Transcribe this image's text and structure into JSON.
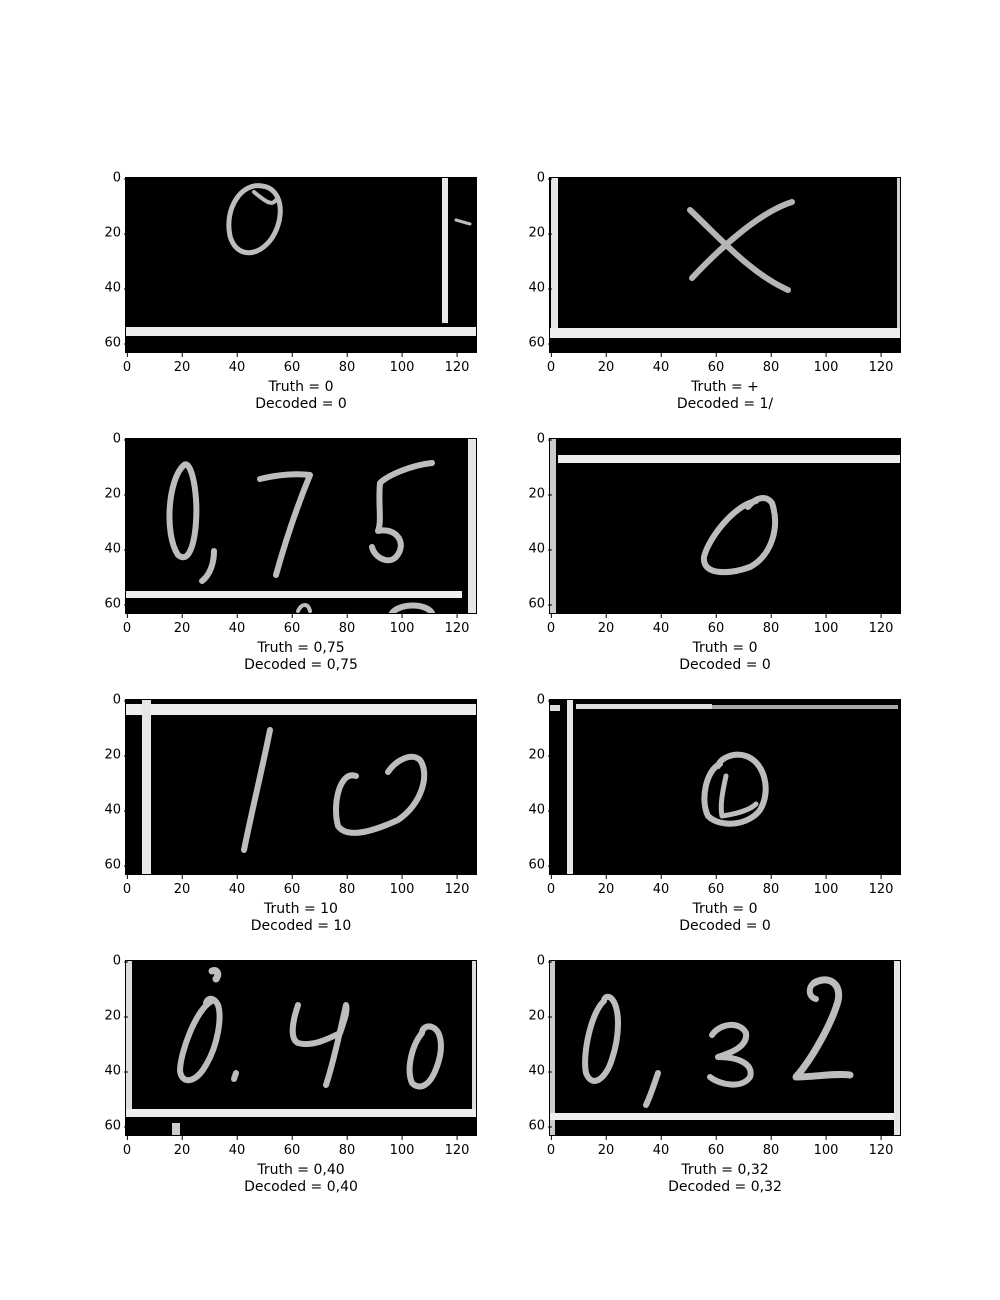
{
  "axes": {
    "y_ticks": [
      "0",
      "20",
      "40",
      "60"
    ],
    "x_ticks": [
      "0",
      "20",
      "40",
      "60",
      "80",
      "100",
      "120"
    ],
    "y_range": [
      0,
      63
    ],
    "x_range": [
      0,
      127
    ]
  },
  "panels": [
    {
      "truth": "Truth = 0",
      "decoded": "Decoded = 0",
      "content": "handwritten 0"
    },
    {
      "truth": "Truth = +",
      "decoded": "Decoded = 1/",
      "content": "handwritten x"
    },
    {
      "truth": "Truth = 0,75",
      "decoded": "Decoded = 0,75",
      "content": "handwritten 0,75"
    },
    {
      "truth": "Truth = 0",
      "decoded": "Decoded = 0",
      "content": "handwritten 0"
    },
    {
      "truth": "Truth = 10",
      "decoded": "Decoded = 10",
      "content": "handwritten 10"
    },
    {
      "truth": "Truth = 0",
      "decoded": "Decoded = 0",
      "content": "handwritten 0"
    },
    {
      "truth": "Truth = 0,40",
      "decoded": "Decoded = 0,40",
      "content": "handwritten 0.40"
    },
    {
      "truth": "Truth = 0,32",
      "decoded": "Decoded = 0,32",
      "content": "handwritten 0,32"
    }
  ]
}
